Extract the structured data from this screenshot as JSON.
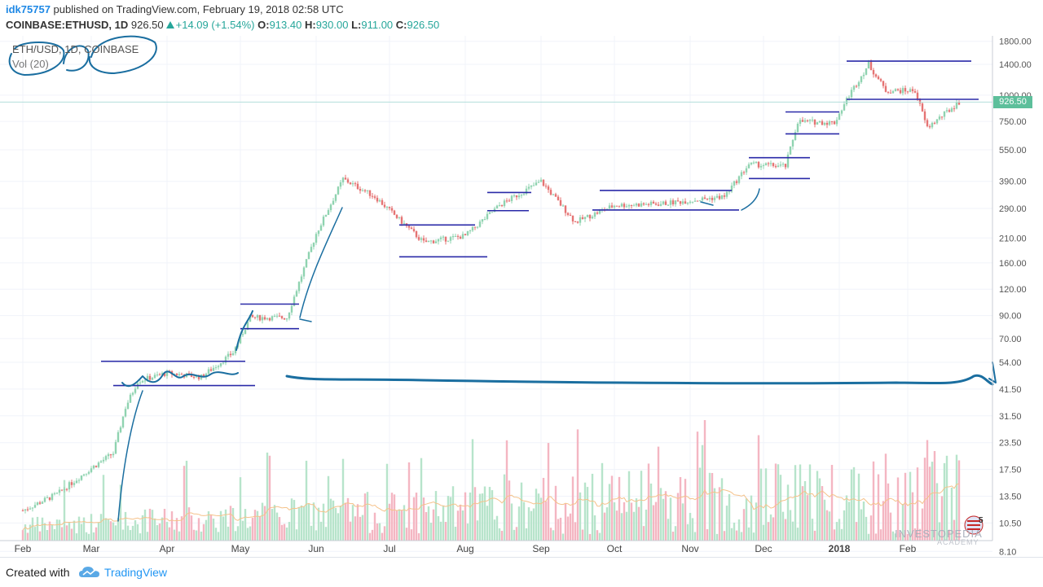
{
  "header": {
    "username": "idk75757",
    "published_text": " published on TradingView.com, February 19, 2018 02:58 UTC",
    "symbol": "COINBASE:ETHUSD, 1D",
    "last": "926.50",
    "change": "+14.09 (+1.54%)",
    "o_label": "O:",
    "o": "913.40",
    "h_label": "H:",
    "h": "930.00",
    "l_label": "L:",
    "l": "911.00",
    "c_label": "C:",
    "c": "926.50"
  },
  "legend": {
    "series": "ETH/USD, 1D, COINBASE",
    "volume": "Vol (20)"
  },
  "price_badge": "926.50",
  "flag_count": "5",
  "footer": {
    "created_with": "Created with",
    "brand": "TradingView"
  },
  "watermark": {
    "brand": "INVESTOPEDIA",
    "sub": "ACADEMY"
  },
  "colors": {
    "up": "#8fd3b0",
    "down": "#e57373",
    "vol_up": "#b7e4cb",
    "vol_down": "#f4b6c2",
    "drawing_lines": "#2a2aa8",
    "ink": "#1a6ea0",
    "volume_ma": "#f5c28a",
    "last_price_line": "#b2dfdb"
  },
  "chart_data": {
    "type": "candlestick",
    "title": "",
    "y_axis": {
      "scale": "log",
      "tick_labels": [
        "1800.00",
        "1400.00",
        "1000.00",
        "750.00",
        "550.00",
        "390.00",
        "290.00",
        "210.00",
        "160.00",
        "120.00",
        "90.00",
        "70.00",
        "54.00",
        "41.50",
        "31.50",
        "23.50",
        "17.50",
        "13.50",
        "10.50",
        "8.10"
      ]
    },
    "x_axis": {
      "tick_labels": [
        "Feb",
        "Mar",
        "Apr",
        "May",
        "Jun",
        "Jul",
        "Aug",
        "Sep",
        "Oct",
        "Nov",
        "Dec",
        "2018",
        "Feb"
      ]
    },
    "last_price": 926.5,
    "approx_close_path": [
      {
        "date": "2017-02-01",
        "close": 10.7
      },
      {
        "date": "2017-02-15",
        "close": 12.8
      },
      {
        "date": "2017-03-01",
        "close": 17
      },
      {
        "date": "2017-03-10",
        "close": 20
      },
      {
        "date": "2017-03-15",
        "close": 33
      },
      {
        "date": "2017-03-20",
        "close": 44
      },
      {
        "date": "2017-04-01",
        "close": 48
      },
      {
        "date": "2017-04-15",
        "close": 46
      },
      {
        "date": "2017-04-28",
        "close": 60
      },
      {
        "date": "2017-05-05",
        "close": 88
      },
      {
        "date": "2017-05-20",
        "close": 88
      },
      {
        "date": "2017-06-01",
        "close": 220
      },
      {
        "date": "2017-06-12",
        "close": 400
      },
      {
        "date": "2017-06-25",
        "close": 330
      },
      {
        "date": "2017-07-15",
        "close": 200
      },
      {
        "date": "2017-08-01",
        "close": 215
      },
      {
        "date": "2017-08-15",
        "close": 300
      },
      {
        "date": "2017-09-01",
        "close": 390
      },
      {
        "date": "2017-09-15",
        "close": 250
      },
      {
        "date": "2017-10-01",
        "close": 300
      },
      {
        "date": "2017-10-20",
        "close": 305
      },
      {
        "date": "2017-11-15",
        "close": 330
      },
      {
        "date": "2017-11-25",
        "close": 470
      },
      {
        "date": "2017-12-10",
        "close": 460
      },
      {
        "date": "2017-12-15",
        "close": 750
      },
      {
        "date": "2017-12-30",
        "close": 740
      },
      {
        "date": "2018-01-05",
        "close": 1000
      },
      {
        "date": "2018-01-13",
        "close": 1400
      },
      {
        "date": "2018-01-20",
        "close": 1050
      },
      {
        "date": "2018-02-01",
        "close": 1050
      },
      {
        "date": "2018-02-06",
        "close": 700
      },
      {
        "date": "2018-02-19",
        "close": 926.5
      }
    ],
    "support_resistance_lines": [
      {
        "price": 54.6,
        "from": "2017-03-05",
        "to": "2017-05-03"
      },
      {
        "price": 41.9,
        "from": "2017-03-10",
        "to": "2017-05-07"
      },
      {
        "price": 102,
        "from": "2017-05-01",
        "to": "2017-05-25"
      },
      {
        "price": 78,
        "from": "2017-05-01",
        "to": "2017-05-25"
      },
      {
        "price": 242,
        "from": "2017-07-05",
        "to": "2017-08-05"
      },
      {
        "price": 171,
        "from": "2017-07-05",
        "to": "2017-08-10"
      },
      {
        "price": 345,
        "from": "2017-08-10",
        "to": "2017-08-28"
      },
      {
        "price": 283,
        "from": "2017-08-10",
        "to": "2017-08-27"
      },
      {
        "price": 353,
        "from": "2017-09-25",
        "to": "2017-11-18"
      },
      {
        "price": 285,
        "from": "2017-09-22",
        "to": "2017-11-21"
      },
      {
        "price": 505,
        "from": "2017-11-25",
        "to": "2017-12-20"
      },
      {
        "price": 402,
        "from": "2017-11-25",
        "to": "2017-12-20"
      },
      {
        "price": 832,
        "from": "2017-12-10",
        "to": "2018-01-01"
      },
      {
        "price": 655,
        "from": "2017-12-10",
        "to": "2018-01-01"
      },
      {
        "price": 1450,
        "from": "2018-01-04",
        "to": "2018-02-24"
      },
      {
        "price": 955,
        "from": "2018-01-04",
        "to": "2018-02-27"
      }
    ]
  }
}
